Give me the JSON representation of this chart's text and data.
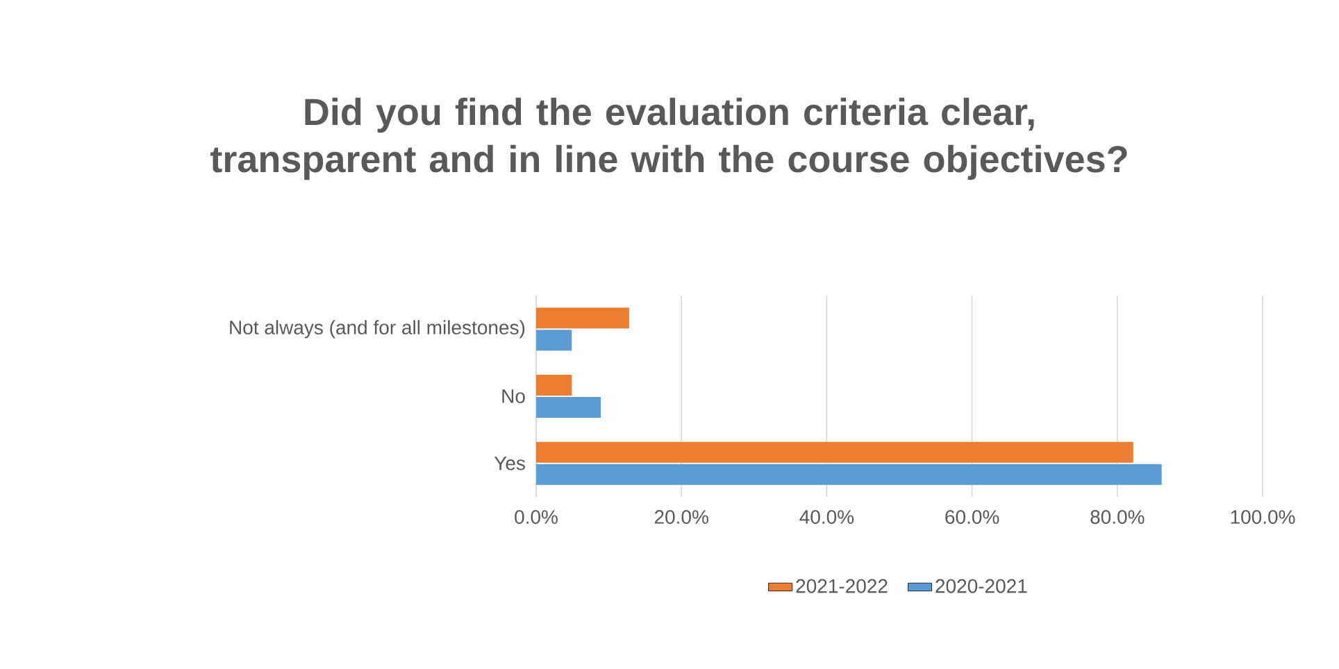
{
  "chart_data": {
    "type": "bar",
    "orientation": "horizontal",
    "title": "Did you find the evaluation criteria clear, transparent and in line with the course objectives?",
    "categories": [
      "Not always (and for all milestones)",
      "No",
      "Yes"
    ],
    "series": [
      {
        "name": "2021-2022",
        "color": "#ed7d31",
        "values": [
          12.8,
          4.9,
          82.2
        ]
      },
      {
        "name": "2020-2021",
        "color": "#5b9bd5",
        "values": [
          4.9,
          8.9,
          86.1
        ]
      }
    ],
    "xlim": [
      0,
      100
    ],
    "xticks": [
      {
        "value": 0,
        "label": "0.0%"
      },
      {
        "value": 20,
        "label": "20.0%"
      },
      {
        "value": 40,
        "label": "40.0%"
      },
      {
        "value": 60,
        "label": "60.0%"
      },
      {
        "value": 80,
        "label": "80.0%"
      },
      {
        "value": 100,
        "label": "100.0%"
      }
    ],
    "grid": "x",
    "legend": "bottom"
  }
}
